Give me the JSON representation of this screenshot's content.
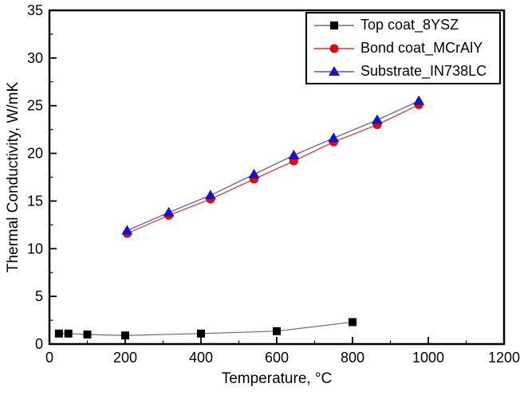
{
  "chart_data": {
    "type": "line",
    "title": "",
    "xlabel": "Temperature, °C",
    "ylabel": "Thermal Conductivity, W/mK",
    "xlim": [
      0,
      1200
    ],
    "ylim": [
      0,
      35
    ],
    "x_major_ticks": [
      0,
      200,
      400,
      600,
      800,
      1000,
      1200
    ],
    "x_minor_step": 100,
    "y_major_ticks": [
      0,
      5,
      10,
      15,
      20,
      25,
      30,
      35
    ],
    "y_minor_step": 2.5,
    "grid": false,
    "legend_position": "top-right",
    "frame_color": "#000000",
    "background_color": "#ffffff",
    "series": [
      {
        "name": "Top coat_8YSZ",
        "marker": "square",
        "marker_color": "#000000",
        "line_color": "#6e6e6e",
        "x": [
          25,
          50,
          100,
          200,
          400,
          600,
          800
        ],
        "y": [
          1.1,
          1.1,
          1.0,
          0.9,
          1.1,
          1.35,
          2.3
        ]
      },
      {
        "name": "Bond coat_MCrAlY",
        "marker": "circle",
        "marker_color": "#ee0000",
        "line_color": "#ee2a2a",
        "x": [
          205,
          315,
          425,
          540,
          645,
          750,
          865,
          975
        ],
        "y": [
          11.6,
          13.5,
          15.2,
          17.3,
          19.2,
          21.2,
          23.0,
          25.1
        ]
      },
      {
        "name": "Substrate_IN738LC",
        "marker": "triangle",
        "marker_color": "#1414cc",
        "line_color": "#5050cc",
        "x": [
          205,
          315,
          425,
          540,
          645,
          750,
          865,
          975
        ],
        "y": [
          11.9,
          13.8,
          15.6,
          17.8,
          19.8,
          21.6,
          23.5,
          25.5
        ]
      }
    ]
  }
}
